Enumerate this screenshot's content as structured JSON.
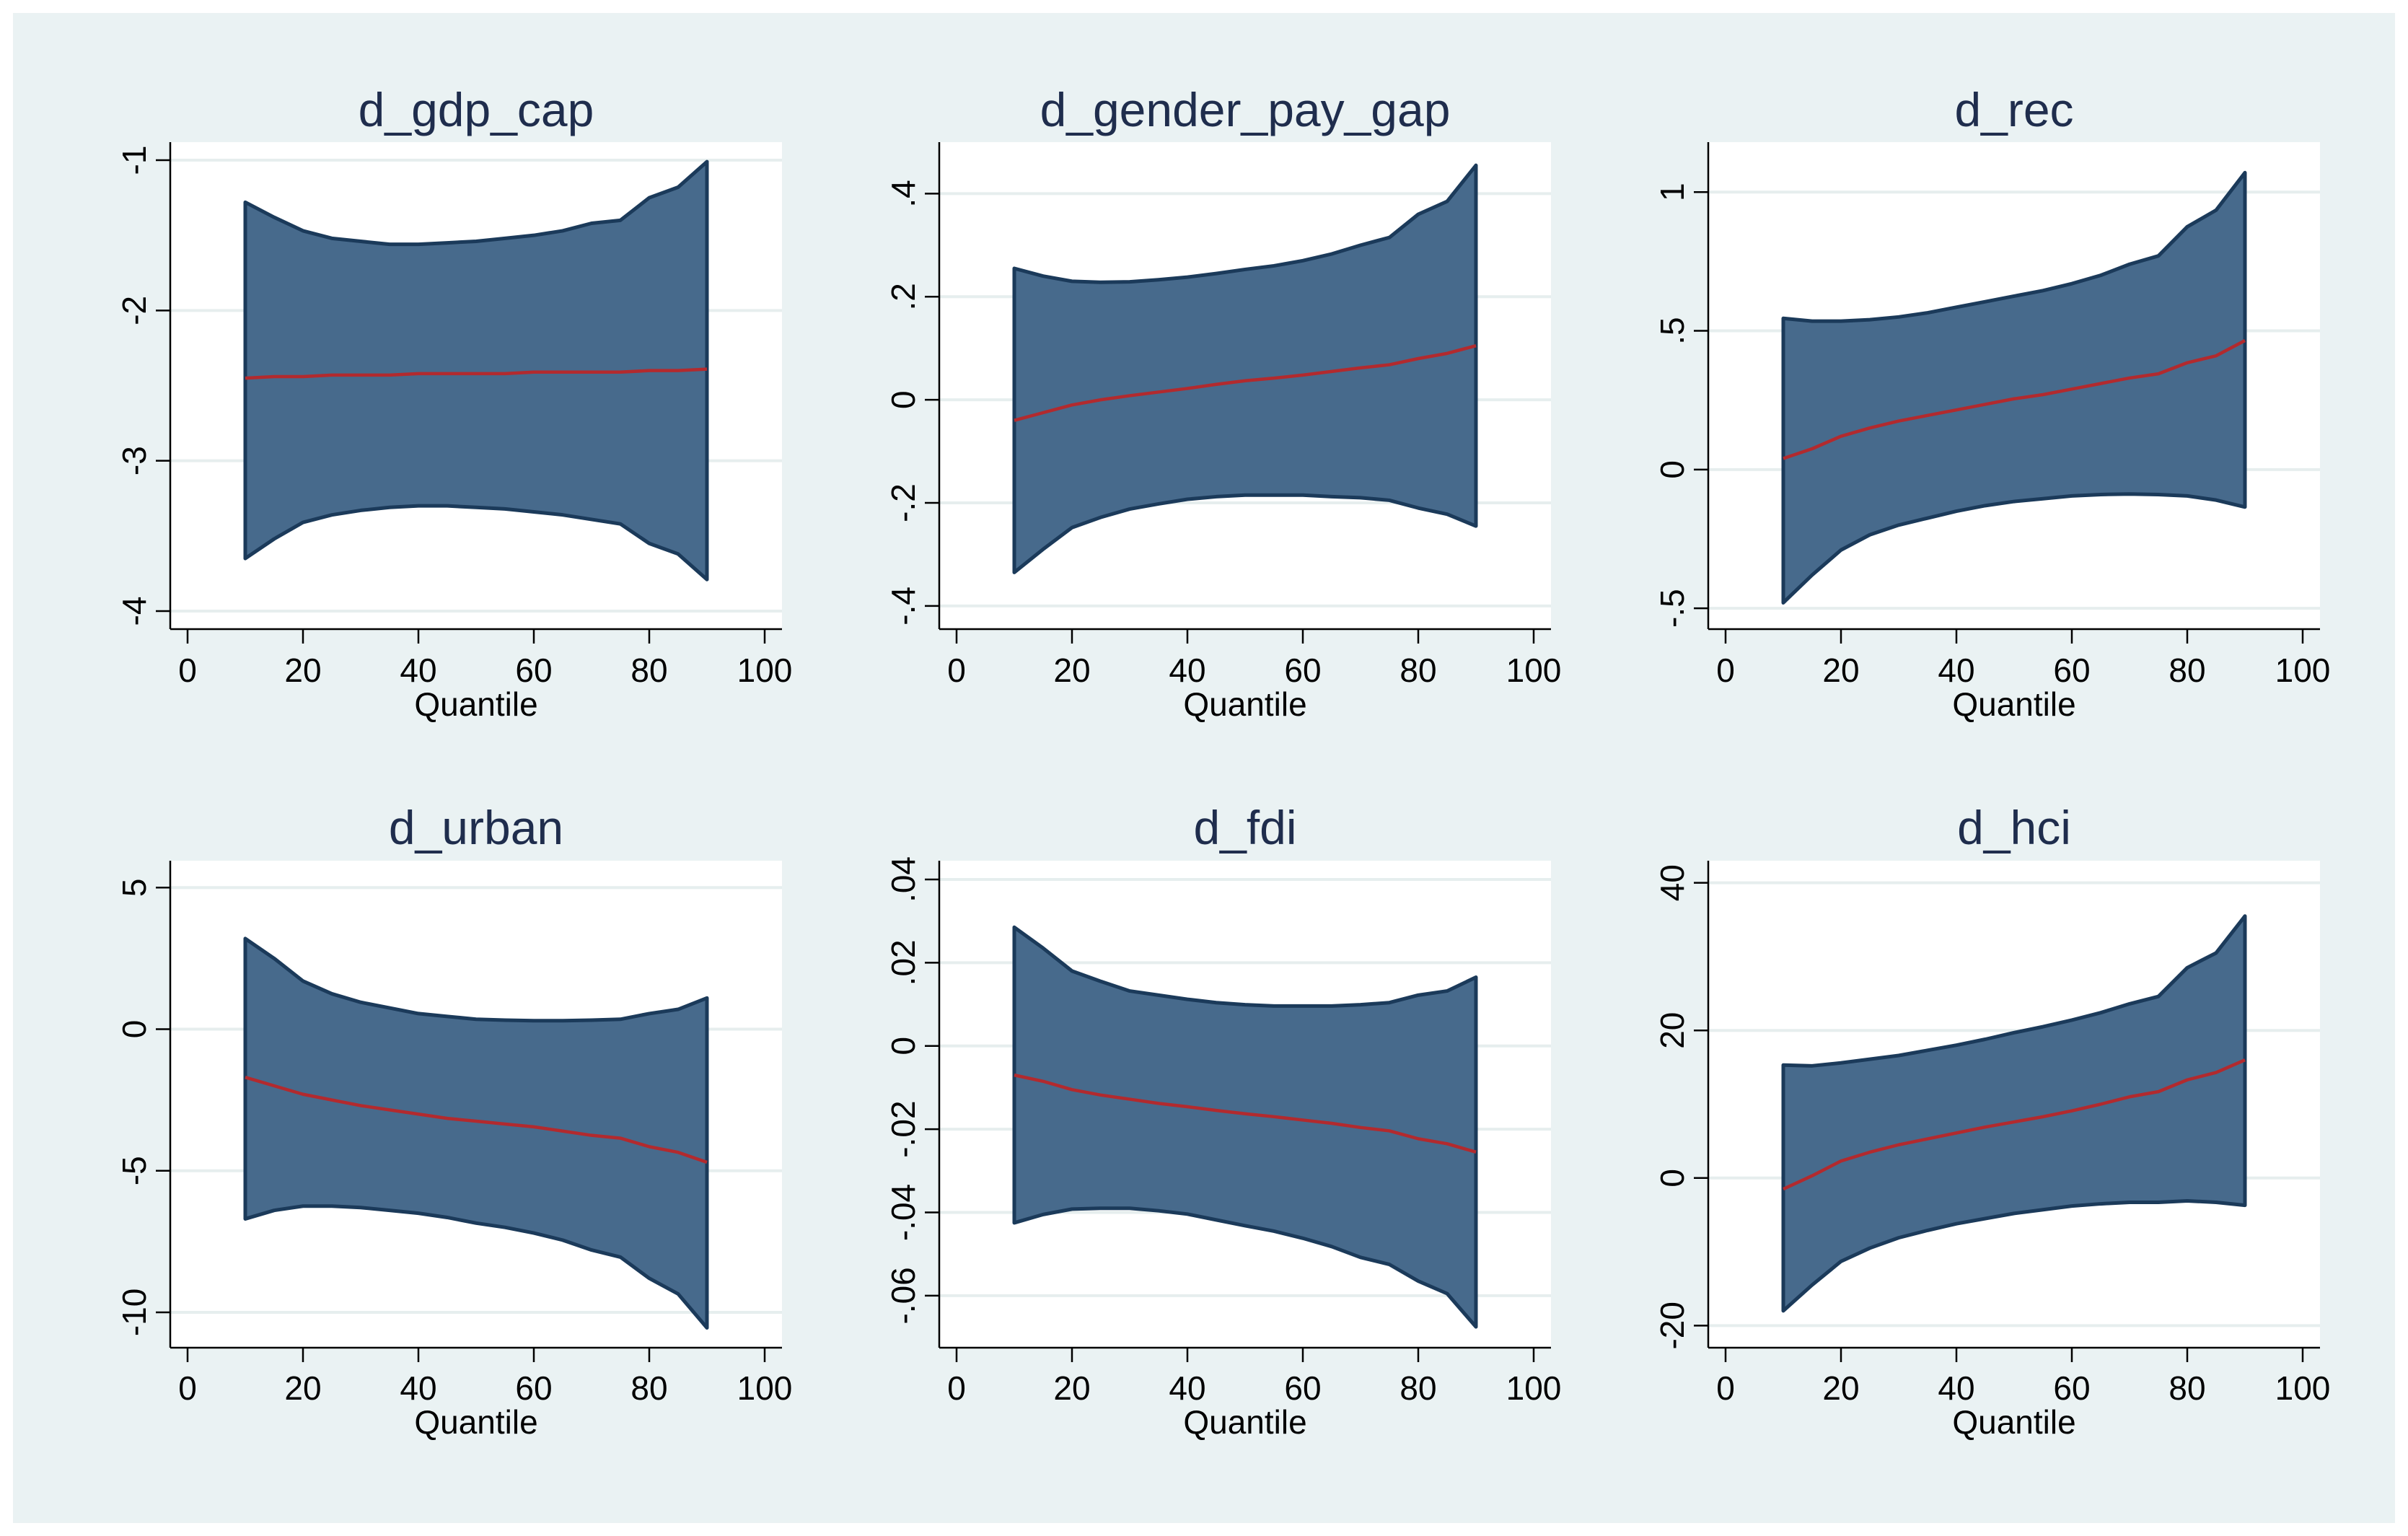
{
  "figure": {
    "background": "#eaf2f3",
    "plot_background": "#ffffff",
    "band_color": "#476a8c",
    "band_edge_color": "#1b3a5a",
    "line_color": "#b22a2e",
    "grid_color": "#e6eeee",
    "text_color": "#1f2d4d"
  },
  "chart_data": [
    {
      "type": "area",
      "title": "d_gdp_cap",
      "xlabel": "Quantile",
      "xlim": [
        -3,
        103
      ],
      "xticks": [
        "0",
        "20",
        "40",
        "60",
        "80",
        "100"
      ],
      "ylim": [
        -4.12,
        -0.88
      ],
      "yticks": [
        -1,
        -2,
        -3,
        -4
      ],
      "ytick_labels": [
        "-1",
        "-2",
        "-3",
        "-4"
      ],
      "quantiles": [
        10,
        15,
        20,
        25,
        30,
        35,
        40,
        45,
        50,
        55,
        60,
        65,
        70,
        75,
        80,
        85,
        90
      ],
      "estimate": [
        -2.45,
        -2.44,
        -2.44,
        -2.43,
        -2.43,
        -2.43,
        -2.42,
        -2.42,
        -2.42,
        -2.42,
        -2.41,
        -2.41,
        -2.41,
        -2.41,
        -2.4,
        -2.4,
        -2.39
      ],
      "upper": [
        -1.28,
        -1.38,
        -1.47,
        -1.52,
        -1.54,
        -1.56,
        -1.56,
        -1.55,
        -1.54,
        -1.52,
        -1.5,
        -1.47,
        -1.42,
        -1.4,
        -1.25,
        -1.18,
        -1.01
      ],
      "lower": [
        -3.65,
        -3.52,
        -3.41,
        -3.36,
        -3.33,
        -3.31,
        -3.3,
        -3.3,
        -3.31,
        -3.32,
        -3.34,
        -3.36,
        -3.39,
        -3.42,
        -3.55,
        -3.62,
        -3.79
      ]
    },
    {
      "type": "area",
      "title": "d_gender_pay_gap",
      "xlabel": "Quantile",
      "xlim": [
        -3,
        103
      ],
      "xticks": [
        "0",
        "20",
        "40",
        "60",
        "80",
        "100"
      ],
      "ylim": [
        -0.445,
        0.5
      ],
      "yticks": [
        0.4,
        0.2,
        0,
        -0.2,
        -0.4
      ],
      "ytick_labels": [
        ".4",
        ".2",
        "0",
        "-.2",
        "-.4"
      ],
      "quantiles": [
        10,
        15,
        20,
        25,
        30,
        35,
        40,
        45,
        50,
        55,
        60,
        65,
        70,
        75,
        80,
        85,
        90
      ],
      "estimate": [
        -0.04,
        -0.025,
        -0.01,
        0,
        0.008,
        0.015,
        0.022,
        0.03,
        0.037,
        0.042,
        0.048,
        0.055,
        0.062,
        0.068,
        0.08,
        0.09,
        0.105
      ],
      "upper": [
        0.255,
        0.24,
        0.23,
        0.228,
        0.229,
        0.233,
        0.238,
        0.245,
        0.253,
        0.26,
        0.27,
        0.283,
        0.3,
        0.315,
        0.36,
        0.385,
        0.455
      ],
      "lower": [
        -0.335,
        -0.29,
        -0.248,
        -0.228,
        -0.212,
        -0.202,
        -0.193,
        -0.188,
        -0.185,
        -0.185,
        -0.185,
        -0.188,
        -0.19,
        -0.195,
        -0.21,
        -0.222,
        -0.245
      ]
    },
    {
      "type": "area",
      "title": "d_rec",
      "xlabel": "Quantile",
      "xlim": [
        -3,
        103
      ],
      "xticks": [
        "0",
        "20",
        "40",
        "60",
        "80",
        "100"
      ],
      "ylim": [
        -0.575,
        1.18
      ],
      "yticks": [
        1,
        0.5,
        0,
        -0.5
      ],
      "ytick_labels": [
        "1",
        ".5",
        "0",
        "-.5"
      ],
      "quantiles": [
        10,
        15,
        20,
        25,
        30,
        35,
        40,
        45,
        50,
        55,
        60,
        65,
        70,
        75,
        80,
        85,
        90
      ],
      "estimate": [
        0.04,
        0.075,
        0.12,
        0.15,
        0.175,
        0.195,
        0.215,
        0.235,
        0.255,
        0.27,
        0.29,
        0.31,
        0.33,
        0.345,
        0.385,
        0.41,
        0.465
      ],
      "upper": [
        0.545,
        0.535,
        0.535,
        0.54,
        0.55,
        0.565,
        0.585,
        0.605,
        0.625,
        0.645,
        0.67,
        0.7,
        0.74,
        0.77,
        0.875,
        0.935,
        1.07
      ],
      "lower": [
        -0.48,
        -0.38,
        -0.29,
        -0.235,
        -0.2,
        -0.175,
        -0.15,
        -0.13,
        -0.115,
        -0.105,
        -0.095,
        -0.09,
        -0.088,
        -0.09,
        -0.095,
        -0.11,
        -0.135
      ]
    },
    {
      "type": "area",
      "title": "d_urban",
      "xlabel": "Quantile",
      "xlim": [
        -3,
        103
      ],
      "xticks": [
        "0",
        "20",
        "40",
        "60",
        "80",
        "100"
      ],
      "ylim": [
        -11.25,
        5.95
      ],
      "yticks": [
        5,
        0,
        -5,
        -10
      ],
      "ytick_labels": [
        "5",
        "0",
        "-5",
        "-10"
      ],
      "quantiles": [
        10,
        15,
        20,
        25,
        30,
        35,
        40,
        45,
        50,
        55,
        60,
        65,
        70,
        75,
        80,
        85,
        90
      ],
      "estimate": [
        -1.7,
        -2.0,
        -2.3,
        -2.5,
        -2.7,
        -2.85,
        -3.0,
        -3.15,
        -3.25,
        -3.35,
        -3.45,
        -3.6,
        -3.75,
        -3.85,
        -4.15,
        -4.35,
        -4.7
      ],
      "upper": [
        3.2,
        2.5,
        1.7,
        1.25,
        0.95,
        0.75,
        0.55,
        0.45,
        0.35,
        0.32,
        0.3,
        0.3,
        0.32,
        0.35,
        0.55,
        0.7,
        1.1
      ],
      "lower": [
        -6.7,
        -6.4,
        -6.25,
        -6.25,
        -6.3,
        -6.4,
        -6.5,
        -6.65,
        -6.85,
        -7.0,
        -7.2,
        -7.45,
        -7.8,
        -8.05,
        -8.8,
        -9.35,
        -10.55
      ]
    },
    {
      "type": "area",
      "title": "d_fdi",
      "xlabel": "Quantile",
      "xlim": [
        -3,
        103
      ],
      "xticks": [
        "0",
        "20",
        "40",
        "60",
        "80",
        "100"
      ],
      "ylim": [
        -0.0725,
        0.0445
      ],
      "yticks": [
        0.04,
        0.02,
        0,
        -0.02,
        -0.04,
        -0.06
      ],
      "ytick_labels": [
        ".04",
        ".02",
        "0",
        "-.02",
        "-.04",
        "-.06"
      ],
      "quantiles": [
        10,
        15,
        20,
        25,
        30,
        35,
        40,
        45,
        50,
        55,
        60,
        65,
        70,
        75,
        80,
        85,
        90
      ],
      "estimate": [
        -0.007,
        -0.0085,
        -0.0105,
        -0.0118,
        -0.0128,
        -0.0138,
        -0.0146,
        -0.0155,
        -0.0163,
        -0.017,
        -0.0178,
        -0.0186,
        -0.0196,
        -0.0204,
        -0.0223,
        -0.0235,
        -0.0255
      ],
      "upper": [
        0.0285,
        0.0235,
        0.018,
        0.0155,
        0.0132,
        0.0122,
        0.0112,
        0.0104,
        0.0099,
        0.0096,
        0.0096,
        0.0096,
        0.0099,
        0.0104,
        0.0122,
        0.0132,
        0.0165
      ],
      "lower": [
        -0.0425,
        -0.0405,
        -0.0392,
        -0.039,
        -0.039,
        -0.0396,
        -0.0404,
        -0.0418,
        -0.0432,
        -0.0445,
        -0.0462,
        -0.0482,
        -0.0508,
        -0.0525,
        -0.0565,
        -0.0595,
        -0.0675
      ]
    },
    {
      "type": "area",
      "title": "d_hci",
      "xlabel": "Quantile",
      "xlim": [
        -3,
        103
      ],
      "xticks": [
        "0",
        "20",
        "40",
        "60",
        "80",
        "100"
      ],
      "ylim": [
        -23,
        43
      ],
      "yticks": [
        40,
        20,
        0,
        -20
      ],
      "ytick_labels": [
        "40",
        "20",
        "0",
        "-20"
      ],
      "quantiles": [
        10,
        15,
        20,
        25,
        30,
        35,
        40,
        45,
        50,
        55,
        60,
        65,
        70,
        75,
        80,
        85,
        90
      ],
      "estimate": [
        -1.5,
        0.3,
        2.3,
        3.5,
        4.5,
        5.3,
        6.1,
        6.9,
        7.6,
        8.3,
        9.1,
        10.0,
        11.0,
        11.7,
        13.3,
        14.3,
        16.0
      ],
      "upper": [
        15.3,
        15.2,
        15.6,
        16.1,
        16.6,
        17.3,
        18.0,
        18.8,
        19.7,
        20.5,
        21.4,
        22.4,
        23.6,
        24.6,
        28.5,
        30.5,
        35.5
      ],
      "lower": [
        -18.0,
        -14.5,
        -11.3,
        -9.5,
        -8.1,
        -7.1,
        -6.2,
        -5.5,
        -4.8,
        -4.3,
        -3.8,
        -3.5,
        -3.3,
        -3.3,
        -3.1,
        -3.3,
        -3.7
      ]
    }
  ]
}
